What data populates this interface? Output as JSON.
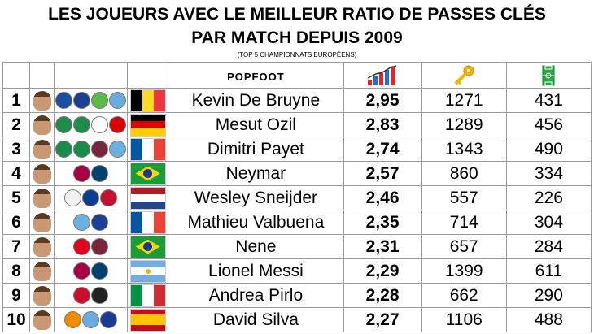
{
  "title_line1": "LES JOUEURS AVEC LE MEILLEUR RATIO DE PASSES CLÉS",
  "title_line2": "PAR MATCH DEPUIS 2009",
  "subtitle": "(TOP 5 CHAMPIONNATS EUROPÉENS)",
  "brand": "POPFOOT",
  "header_icons": [
    "bar-chart-icon",
    "key-icon",
    "football-pitch-icon"
  ],
  "rows": [
    {
      "rank": "1",
      "name": "Kevin De Bruyne",
      "ratio": "2,95",
      "key_passes": "1271",
      "matches": "431",
      "flag": "belgium",
      "clubs": [
        "#1a4e9e",
        "#1c3f94",
        "#5cba47",
        "#6cabdd"
      ]
    },
    {
      "rank": "2",
      "name": "Mesut Ozil",
      "ratio": "2,83",
      "key_passes": "1289",
      "matches": "456",
      "flag": "germany",
      "clubs": [
        "#1e8c4a",
        "#1e8c4a",
        "#ffffff",
        "#db0007"
      ]
    },
    {
      "rank": "3",
      "name": "Dimitri Payet",
      "ratio": "2,74",
      "key_passes": "1343",
      "matches": "490",
      "flag": "france",
      "clubs": [
        "#1a8c4a",
        "#1a8c4a",
        "#7a263a",
        "#6ab0e0"
      ]
    },
    {
      "rank": "4",
      "name": "Neymar",
      "ratio": "2,57",
      "key_passes": "860",
      "matches": "334",
      "flag": "brazil",
      "clubs": [
        "#a50044",
        "#004170"
      ]
    },
    {
      "rank": "5",
      "name": "Wesley Sneijder",
      "ratio": "2,46",
      "key_passes": "557",
      "matches": "226",
      "flag": "netherlands",
      "clubs": [
        "#f2f2f2",
        "#0a3d8f",
        "#c8102e"
      ]
    },
    {
      "rank": "6",
      "name": "Mathieu Valbuena",
      "ratio": "2,35",
      "key_passes": "714",
      "matches": "304",
      "flag": "france",
      "clubs": [
        "#6ab0e0",
        "#1c3f94"
      ]
    },
    {
      "rank": "7",
      "name": "Nene",
      "ratio": "2,31",
      "key_passes": "657",
      "matches": "284",
      "flag": "brazil",
      "clubs": [
        "#e2001a",
        "#7a263a"
      ]
    },
    {
      "rank": "8",
      "name": "Lionel Messi",
      "ratio": "2,29",
      "key_passes": "1399",
      "matches": "611",
      "flag": "argentina",
      "clubs": [
        "#a50044",
        "#004170"
      ]
    },
    {
      "rank": "9",
      "name": "Andrea Pirlo",
      "ratio": "2,28",
      "key_passes": "662",
      "matches": "290",
      "flag": "italy",
      "clubs": [
        "#c8102e",
        "#222222"
      ]
    },
    {
      "rank": "10",
      "name": "David Silva",
      "ratio": "2,27",
      "key_passes": "1106",
      "matches": "488",
      "flag": "spain",
      "clubs": [
        "#f08c00",
        "#6cabdd",
        "#1b3a94"
      ]
    }
  ]
}
